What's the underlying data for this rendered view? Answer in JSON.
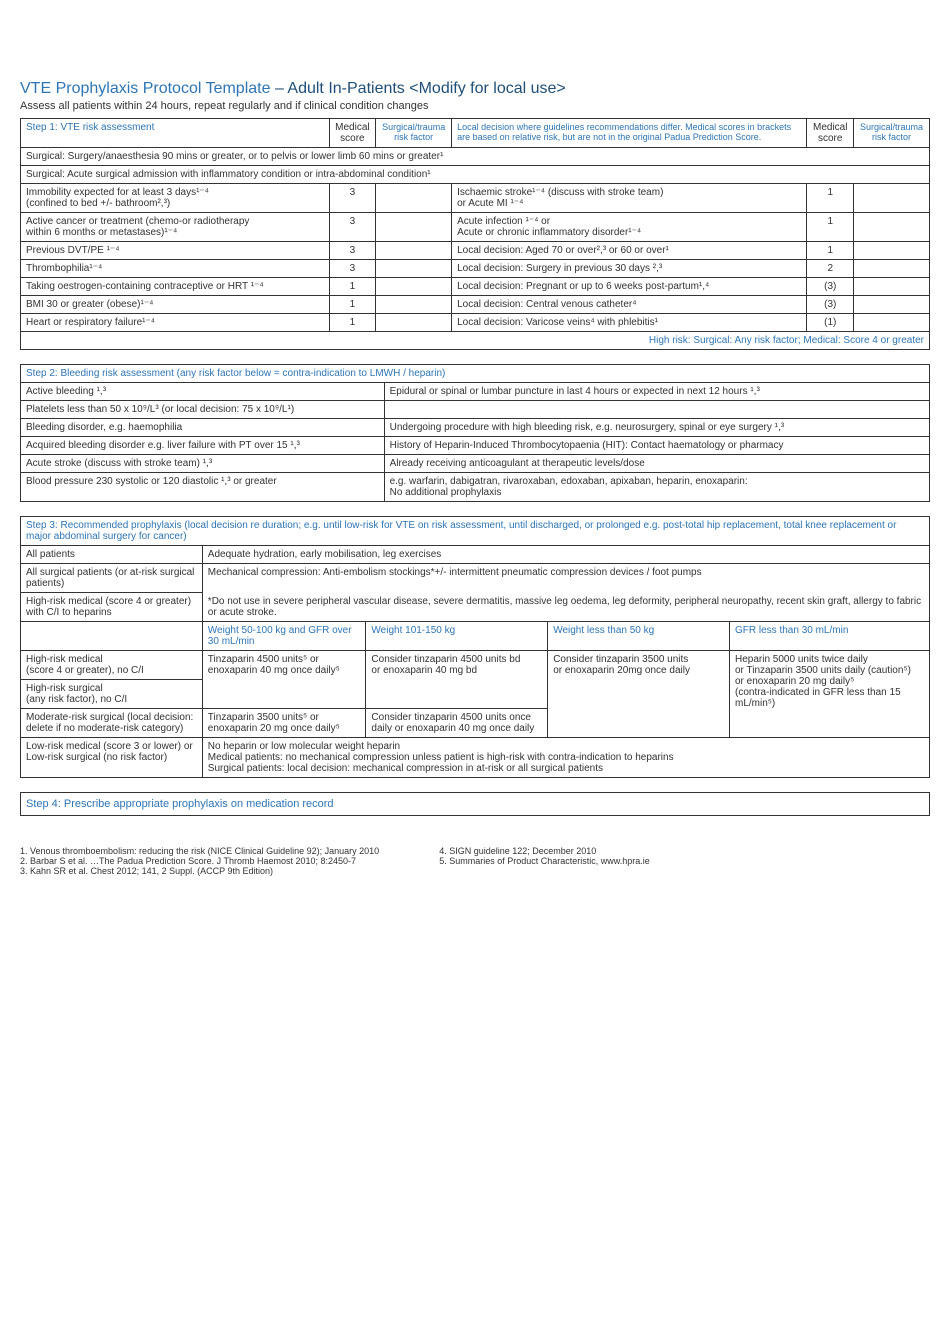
{
  "header": {
    "title_a": "VTE Prophylaxis Protocol Template ",
    "dash": "– ",
    "title_b": "Adult In-Patients <Modify for local use>",
    "subtitle": "Assess all patients within 24 hours, repeat regularly and if clinical condition changes"
  },
  "step1": {
    "head": {
      "c1": "Step 1: VTE risk assessment",
      "c2": "Medical score",
      "c3": "Surgical/trauma risk factor",
      "c4": "Local decision where guidelines recommendations differ. Medical scores in brackets are based on relative risk, but are not in the original Padua Prediction Score.",
      "c5": "Medical score",
      "c6": "Surgical/trauma risk factor"
    },
    "surgical1": "Surgical: Surgery/anaesthesia 90 mins or greater, or to pelvis or lower limb 60 mins or greater¹",
    "surgical2": "Surgical: Acute surgical admission with inflammatory condition or intra-abdominal condition¹",
    "rows": [
      {
        "l": "Immobility expected for at least 3 days¹⁻⁴\n(confined to bed +/- bathroom²,³)",
        "ms": "3",
        "r": "Ischaemic stroke¹⁻⁴ (discuss with stroke team)\n     or Acute MI ¹⁻⁴",
        "rs": "1"
      },
      {
        "l": "Active cancer or treatment (chemo-or radiotherapy\nwithin 6 months or metastases)¹⁻⁴",
        "ms": "3",
        "r": "Acute infection ¹⁻⁴ or\nAcute or chronic inflammatory disorder¹⁻⁴",
        "rs": "1"
      },
      {
        "l": "Previous DVT/PE ¹⁻⁴",
        "ms": "3",
        "r": "Local decision:  Aged 70 or over²,³ or 60 or over¹",
        "rs": "1"
      },
      {
        "l": "Thrombophilia¹⁻⁴",
        "ms": "3",
        "r": "Local decision: Surgery in previous 30 days ²,³",
        "rs": "2"
      },
      {
        "l": "Taking oestrogen-containing contraceptive or HRT ¹⁻⁴",
        "ms": "1",
        "r": "Local decision: Pregnant or up to 6 weeks post-partum¹,⁴",
        "rs": "(3)"
      },
      {
        "l": "BMI 30 or greater (obese)¹⁻⁴",
        "ms": "1",
        "r": "Local decision: Central venous catheter⁴",
        "rs": "(3)"
      },
      {
        "l": "Heart or respiratory failure¹⁻⁴",
        "ms": "1",
        "r": "Local decision: Varicose veins⁴ with phlebitis¹",
        "rs": "(1)"
      }
    ],
    "footer": "High risk: Surgical: Any risk factor; Medical: Score 4 or greater"
  },
  "step2": {
    "title": "Step 2: Bleeding risk assessment (any risk factor below = contra-indication to LMWH / heparin)",
    "rows": [
      {
        "l": "Active bleeding ¹,³",
        "r": "Epidural or spinal or lumbar puncture in last 4 hours or expected in next 12 hours ¹,³"
      },
      {
        "l": "Platelets less than 50 x 10⁹/L³ (or local decision: 75 x 10⁹/L¹)",
        "r": ""
      },
      {
        "l": "Bleeding disorder, e.g. haemophilia",
        "r": "Undergoing procedure with high bleeding risk, e.g. neurosurgery, spinal or eye surgery ¹,³"
      },
      {
        "l": "Acquired bleeding disorder e.g. liver failure with PT over 15 ¹,³",
        "r": "History of Heparin-Induced Thrombocytopaenia (HIT): Contact haematology or pharmacy"
      },
      {
        "l": "Acute stroke (discuss with stroke team) ¹,³",
        "r": "Already receiving anticoagulant at therapeutic levels/dose"
      },
      {
        "l": "Blood pressure 230 systolic or 120 diastolic ¹,³ or greater",
        "r": "e.g. warfarin, dabigatran, rivaroxaban, edoxaban, apixaban, heparin, enoxaparin:\nNo additional prophylaxis"
      }
    ]
  },
  "step3": {
    "title": "Step 3: Recommended  prophylaxis (local decision re duration; e.g. until low-risk for VTE on risk assessment, until discharged, or prolonged e.g. post-total hip replacement, total knee replacement or major abdominal surgery for cancer)",
    "all_label": "All patients",
    "all_val": "Adequate hydration, early mobilisation, leg exercises",
    "surg_label": "All surgical patients (or at-risk surgical patients)",
    "surg_val": "Mechanical compression: Anti-embolism stockings*+/- intermittent pneumatic compression devices / foot pumps",
    "hr_label": "High-risk medical (score 4 or greater)\nwith C/I to heparins",
    "hr_val": "*Do not use in severe peripheral vascular disease, severe dermatitis, massive leg oedema, leg deformity, peripheral neuropathy, recent skin graft, allergy to fabric or acute stroke.",
    "cols": {
      "c1": "",
      "c2": "Weight 50-100 kg and GFR over 30 mL/min",
      "c3": "Weight 101-150 kg",
      "c4": "Weight less than 50 kg",
      "c5": "GFR less than 30 mL/min"
    },
    "r1c1": "High-risk medical\n(score 4 or greater), no C/I",
    "r2c1": "High-risk surgical\n(any risk factor), no C/I",
    "r1c2": "Tinzaparin 4500 units⁵ or\nenoxaparin 40 mg once daily⁵",
    "r1c3": "Consider tinzaparin 4500 units bd\nor enoxaparin 40 mg bd",
    "r1c4": "Consider tinzaparin 3500 units\nor enoxaparin 20mg once daily",
    "r1c5": "Heparin 5000 units twice daily\nor Tinzaparin 3500 units daily (caution⁵)\nor enoxaparin 20 mg daily⁵\n(contra-indicated in GFR less than 15 mL/min⁵)",
    "r3c1": "Moderate-risk surgical (local decision: delete if no moderate-risk category)",
    "r3c2": "Tinzaparin 3500 units⁵ or\nenoxaparin 20 mg once daily⁵",
    "r3c3": "Consider tinzaparin 4500 units once daily or enoxaparin 40 mg once daily",
    "r4c1": "Low-risk medical (score 3 or lower) or Low-risk surgical (no risk factor)",
    "r4c2": "No heparin or low molecular weight heparin\nMedical patients: no mechanical compression unless patient is high-risk with contra-indication to heparins\nSurgical patients: local decision: mechanical compression in at-risk or all surgical patients"
  },
  "step4": "Step 4: Prescribe appropriate prophylaxis on medication record",
  "refs": {
    "left": "1. Venous thromboembolism: reducing the risk (NICE Clinical Guideline 92); January 2010\n2. Barbar S et al. …The Padua Prediction Score. J Thromb Haemost 2010; 8:2450-7\n3. Kahn SR et al. Chest 2012; 141, 2 Suppl. (ACCP 9th Edition)",
    "right": "4. SIGN guideline 122; December 2010\n5. Summaries of Product Characteristic, www.hpra.ie"
  }
}
